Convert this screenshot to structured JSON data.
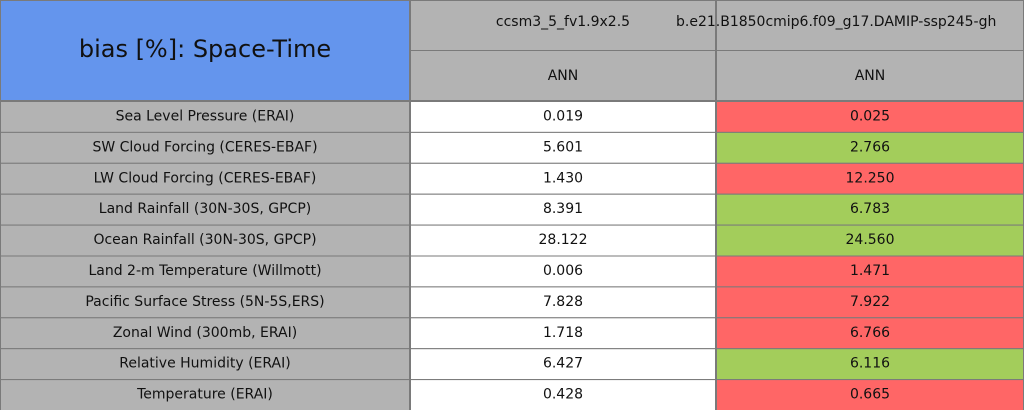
{
  "table": {
    "title": "bias [%]: Space-Time",
    "columns": [
      {
        "name": "ccsm3_5_fv1.9x2.5",
        "period": "ANN"
      },
      {
        "name": "b.e21.B1850cmip6.f09_g17.DAMIP-ssp245-gh",
        "period": "ANN"
      }
    ],
    "rows": [
      {
        "label": "Sea Level Pressure (ERAI)",
        "values": [
          "0.019",
          "0.025"
        ],
        "colors": [
          "#ffffff",
          "#ff6666"
        ]
      },
      {
        "label": "SW Cloud Forcing (CERES-EBAF)",
        "values": [
          "5.601",
          "2.766"
        ],
        "colors": [
          "#ffffff",
          "#a3cd5b"
        ]
      },
      {
        "label": "LW Cloud Forcing (CERES-EBAF)",
        "values": [
          "1.430",
          "12.250"
        ],
        "colors": [
          "#ffffff",
          "#ff6666"
        ]
      },
      {
        "label": "Land Rainfall (30N-30S, GPCP)",
        "values": [
          "8.391",
          "6.783"
        ],
        "colors": [
          "#ffffff",
          "#a3cd5b"
        ]
      },
      {
        "label": "Ocean Rainfall (30N-30S, GPCP)",
        "values": [
          "28.122",
          "24.560"
        ],
        "colors": [
          "#ffffff",
          "#a3cd5b"
        ]
      },
      {
        "label": "Land 2-m Temperature (Willmott)",
        "values": [
          "0.006",
          "1.471"
        ],
        "colors": [
          "#ffffff",
          "#ff6666"
        ]
      },
      {
        "label": "Pacific Surface Stress (5N-5S,ERS)",
        "values": [
          "7.828",
          "7.922"
        ],
        "colors": [
          "#ffffff",
          "#ff6666"
        ]
      },
      {
        "label": "Zonal Wind (300mb, ERAI)",
        "values": [
          "1.718",
          "6.766"
        ],
        "colors": [
          "#ffffff",
          "#ff6666"
        ]
      },
      {
        "label": "Relative Humidity (ERAI)",
        "values": [
          "6.427",
          "6.116"
        ],
        "colors": [
          "#ffffff",
          "#a3cd5b"
        ]
      },
      {
        "label": "Temperature (ERAI)",
        "values": [
          "0.428",
          "0.665"
        ],
        "colors": [
          "#ffffff",
          "#ff6666"
        ]
      }
    ],
    "header_color": "#6495ed",
    "column_header_color": "#b3b3b3",
    "label_color": "#b3b3b3"
  }
}
